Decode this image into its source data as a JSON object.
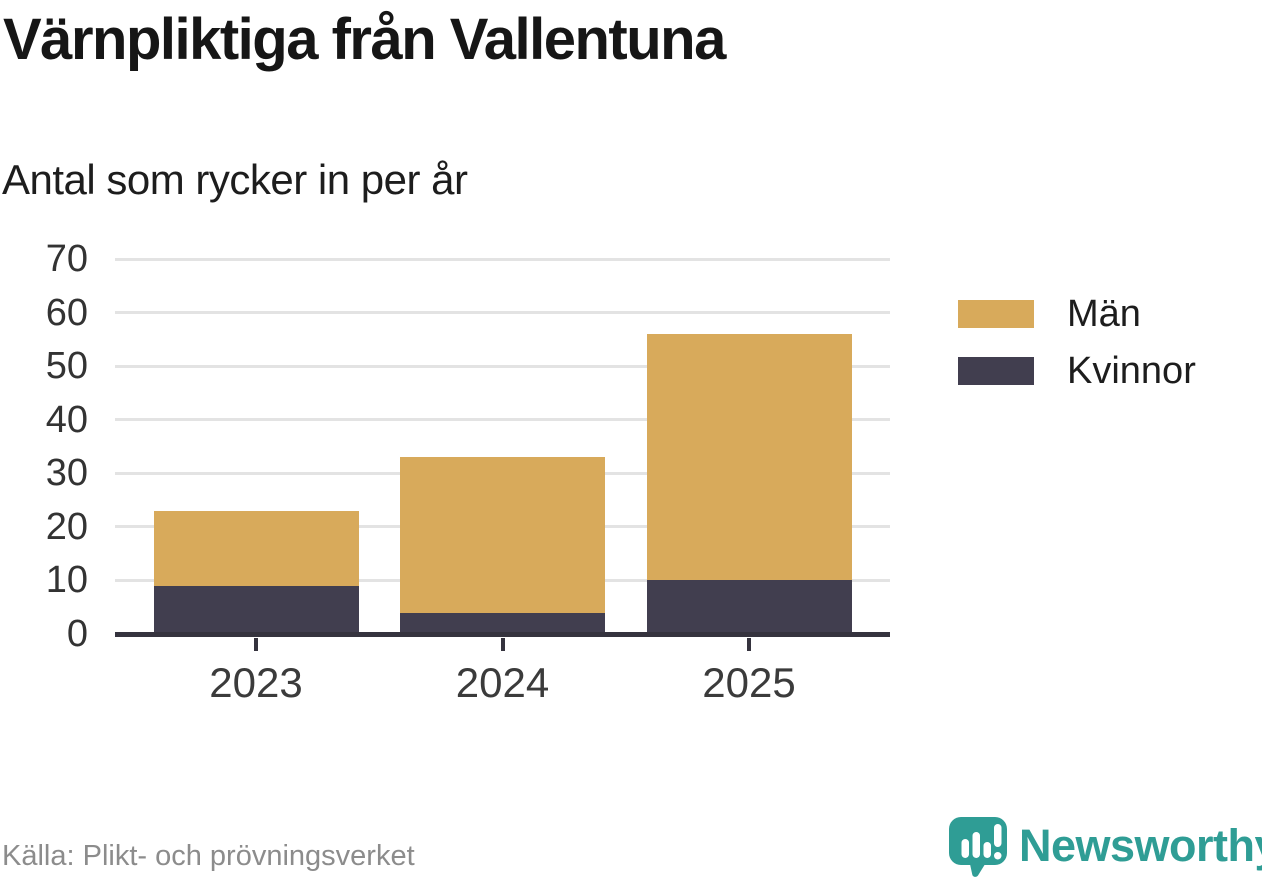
{
  "title": "Värnpliktiga från Vallentuna",
  "subtitle": "Antal som rycker in per år",
  "source": "Källa: Plikt- och prövningsverket",
  "brand": {
    "name": "Newsworthy",
    "color": "#2f9d95",
    "icon": "newsworthy-speech-bubble-bar-chart-icon"
  },
  "colors": {
    "men": "#d8aa5b",
    "women": "#413e4f",
    "axis": "#35333e",
    "grid": "#e3e3e3",
    "title_text": "#161616",
    "muted_text": "#8c8c8c",
    "background": "#ffffff"
  },
  "legend": {
    "items": [
      {
        "label": "Män",
        "color": "#d8aa5b"
      },
      {
        "label": "Kvinnor",
        "color": "#413e4f"
      }
    ]
  },
  "chart_data": {
    "type": "bar",
    "stacked": true,
    "title": "Värnpliktiga från Vallentuna",
    "subtitle": "Antal som rycker in per år",
    "categories": [
      "2023",
      "2024",
      "2025"
    ],
    "series": [
      {
        "name": "Kvinnor",
        "color": "#413e4f",
        "values": [
          9,
          4,
          10
        ]
      },
      {
        "name": "Män",
        "color": "#d8aa5b",
        "values": [
          14,
          29,
          46
        ]
      }
    ],
    "totals": [
      23,
      33,
      56
    ],
    "y_ticks": [
      0,
      10,
      20,
      30,
      40,
      50,
      60,
      70
    ],
    "ylim": [
      0,
      70
    ],
    "xlabel": "",
    "ylabel": "",
    "grid": true,
    "legend_position": "right",
    "legend_order": [
      "Män",
      "Kvinnor"
    ]
  }
}
